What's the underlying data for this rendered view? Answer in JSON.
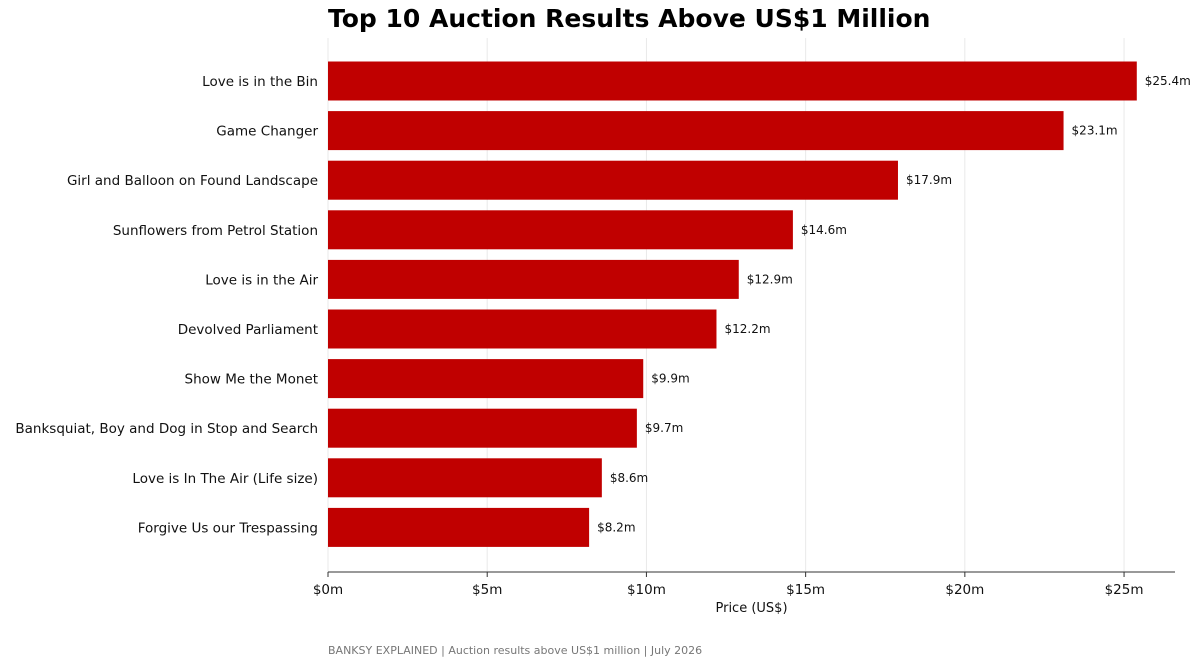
{
  "chart_data": {
    "type": "bar",
    "orientation": "horizontal",
    "title": "Top 10 Auction Results Above US$1 Million",
    "xlabel": "Price (US$)",
    "ylabel": "",
    "categories": [
      "Love is in the Bin",
      "Game Changer",
      "Girl and Balloon on Found Landscape",
      "Sunflowers from Petrol Station",
      "Love is in the Air",
      "Devolved Parliament",
      "Show Me the Monet",
      "Banksquiat, Boy and Dog in Stop and Search",
      "Love is In The Air (Life size)",
      "Forgive Us our Trespassing"
    ],
    "values": [
      25.4,
      23.1,
      17.9,
      14.6,
      12.9,
      12.2,
      9.9,
      9.7,
      8.6,
      8.2
    ],
    "value_labels": [
      "$25.4m",
      "$23.1m",
      "$17.9m",
      "$14.6m",
      "$12.9m",
      "$12.2m",
      "$9.9m",
      "$9.7m",
      "$8.6m",
      "$8.2m"
    ],
    "xlim": [
      0,
      26.6
    ],
    "xticks": [
      0,
      5,
      10,
      15,
      20,
      25
    ],
    "xtick_labels": [
      "$0m",
      "$5m",
      "$10m",
      "$15m",
      "$20m",
      "$25m"
    ],
    "bar_color": "#c00000",
    "grid": "vertical",
    "legend": "none"
  },
  "footer": "BANKSY EXPLAINED  |  Auction results above US$1 million  |  July 2026"
}
